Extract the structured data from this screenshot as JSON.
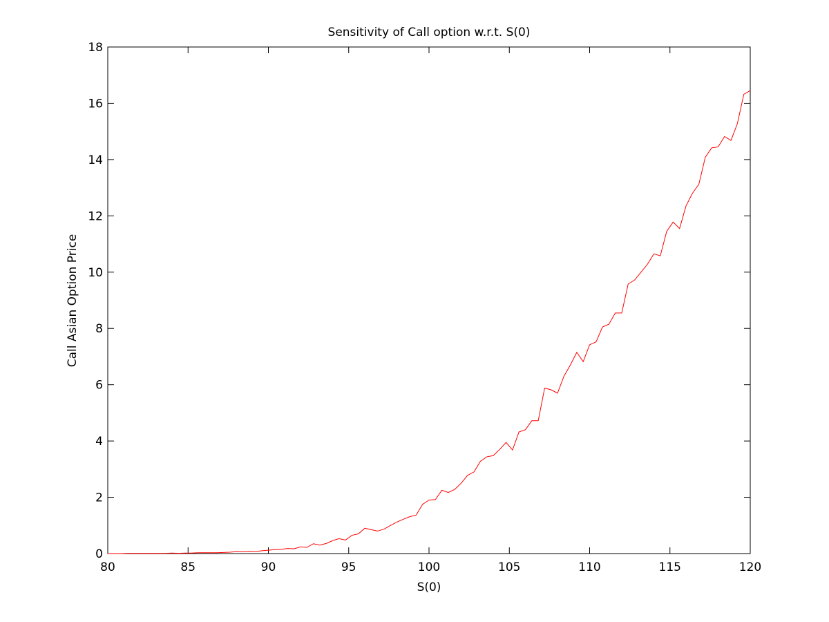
{
  "chart_data": {
    "type": "line",
    "title": "Sensitivity of Call option w.r.t. S(0)",
    "xlabel": "S(0)",
    "ylabel": "Call Asian Option Price",
    "xlim": [
      80,
      120
    ],
    "ylim": [
      0,
      18
    ],
    "xticks": [
      80,
      85,
      90,
      95,
      100,
      105,
      110,
      115,
      120
    ],
    "yticks": [
      0,
      2,
      4,
      6,
      8,
      10,
      12,
      14,
      16,
      18
    ],
    "grid": false,
    "line_color": "#ff0000",
    "series": [
      {
        "x": [
          80.0,
          80.4,
          80.8,
          81.2,
          81.6,
          82.0,
          82.4,
          82.8,
          83.2,
          83.6,
          84.0,
          84.4,
          84.8,
          85.2,
          85.6,
          86.0,
          86.4,
          86.8,
          87.2,
          87.6,
          88.0,
          88.4,
          88.8,
          89.2,
          89.6,
          90.0,
          90.4,
          90.8,
          91.2,
          91.6,
          92.0,
          92.4,
          92.8,
          93.2,
          93.6,
          94.0,
          94.4,
          94.8,
          95.2,
          95.6,
          96.0,
          96.4,
          96.8,
          97.2,
          97.6,
          98.0,
          98.4,
          98.8,
          99.2,
          99.6,
          100.0,
          100.4,
          100.8,
          101.2,
          101.6,
          102.0,
          102.4,
          102.8,
          103.2,
          103.6,
          104.0,
          104.4,
          104.8,
          105.2,
          105.6,
          106.0,
          106.4,
          106.8,
          107.2,
          107.6,
          108.0,
          108.4,
          108.8,
          109.2,
          109.6,
          110.0,
          110.4,
          110.8,
          111.2,
          111.6,
          112.0,
          112.4,
          112.8,
          113.2,
          113.6,
          114.0,
          114.4,
          114.8,
          115.2,
          115.6,
          116.0,
          116.4,
          116.8,
          117.2,
          117.6,
          118.0,
          118.4,
          118.8,
          119.2,
          119.6,
          120.0
        ],
        "y": [
          0.0,
          0.0,
          0.0,
          0.01,
          0.01,
          0.01,
          0.01,
          0.01,
          0.01,
          0.01,
          0.02,
          0.01,
          0.02,
          0.02,
          0.03,
          0.03,
          0.03,
          0.03,
          0.04,
          0.05,
          0.07,
          0.06,
          0.08,
          0.07,
          0.1,
          0.12,
          0.14,
          0.15,
          0.18,
          0.17,
          0.24,
          0.22,
          0.35,
          0.3,
          0.36,
          0.46,
          0.53,
          0.48,
          0.65,
          0.7,
          0.9,
          0.85,
          0.8,
          0.87,
          1.0,
          1.12,
          1.22,
          1.31,
          1.37,
          1.75,
          1.9,
          1.92,
          2.25,
          2.17,
          2.28,
          2.5,
          2.78,
          2.9,
          3.28,
          3.44,
          3.48,
          3.7,
          3.95,
          3.68,
          4.32,
          4.4,
          4.72,
          4.72,
          5.88,
          5.82,
          5.7,
          6.3,
          6.7,
          7.15,
          6.82,
          7.42,
          7.52,
          8.05,
          8.15,
          8.55,
          8.55,
          9.58,
          9.72,
          10.0,
          10.28,
          10.65,
          10.58,
          11.45,
          11.78,
          11.55,
          12.35,
          12.8,
          13.12,
          14.08,
          14.42,
          14.45,
          14.82,
          14.68,
          15.28,
          16.32,
          16.45
        ]
      }
    ]
  }
}
